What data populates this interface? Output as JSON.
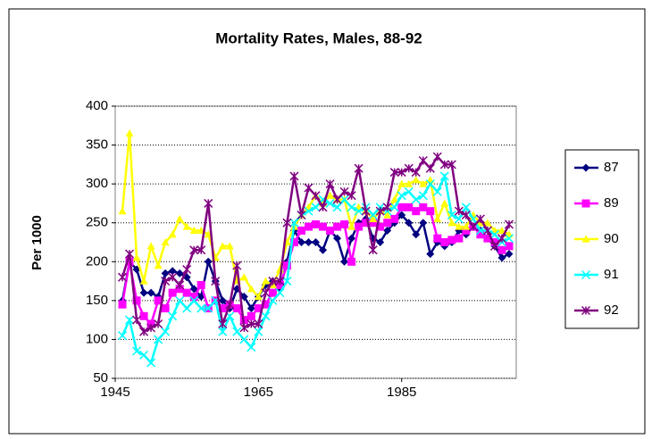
{
  "chart_data": {
    "type": "line",
    "title": "Mortality Rates, Males, 88-92",
    "y_label": "Per 1000",
    "x": [
      1946,
      1947,
      1948,
      1949,
      1950,
      1951,
      1952,
      1953,
      1954,
      1955,
      1956,
      1957,
      1958,
      1959,
      1960,
      1961,
      1962,
      1963,
      1964,
      1965,
      1966,
      1967,
      1968,
      1969,
      1970,
      1971,
      1972,
      1973,
      1974,
      1975,
      1976,
      1977,
      1978,
      1979,
      1980,
      1981,
      1982,
      1983,
      1984,
      1985,
      1986,
      1987,
      1988,
      1989,
      1990,
      1991,
      1992,
      1993,
      1994,
      1995,
      1996,
      1997,
      1998,
      1999,
      2000
    ],
    "series": [
      {
        "name": "87",
        "color": "#000080",
        "marker": "diamond",
        "values": [
          150,
          200,
          190,
          160,
          160,
          155,
          185,
          188,
          185,
          180,
          165,
          155,
          200,
          175,
          150,
          140,
          165,
          155,
          140,
          155,
          170,
          175,
          165,
          200,
          240,
          225,
          225,
          225,
          215,
          240,
          230,
          200,
          230,
          250,
          255,
          230,
          225,
          240,
          250,
          260,
          250,
          235,
          250,
          210,
          225,
          220,
          225,
          240,
          235,
          245,
          240,
          230,
          220,
          205,
          210
        ]
      },
      {
        "name": "89",
        "color": "#ff00ff",
        "marker": "square",
        "values": [
          145,
          200,
          150,
          130,
          120,
          150,
          140,
          160,
          165,
          160,
          155,
          170,
          140,
          150,
          140,
          145,
          140,
          125,
          130,
          140,
          145,
          160,
          170,
          195,
          225,
          240,
          245,
          248,
          245,
          240,
          245,
          248,
          200,
          245,
          250,
          250,
          245,
          250,
          255,
          270,
          270,
          265,
          270,
          265,
          230,
          225,
          228,
          230,
          240,
          245,
          235,
          230,
          225,
          215,
          220
        ]
      },
      {
        "name": "90",
        "color": "#ffff00",
        "marker": "triangle",
        "values": [
          265,
          365,
          205,
          175,
          220,
          195,
          225,
          235,
          255,
          245,
          240,
          240,
          235,
          205,
          220,
          220,
          175,
          180,
          165,
          155,
          175,
          170,
          190,
          225,
          245,
          260,
          270,
          285,
          275,
          285,
          280,
          280,
          245,
          270,
          265,
          255,
          265,
          260,
          280,
          300,
          300,
          305,
          300,
          305,
          255,
          275,
          250,
          245,
          245,
          260,
          250,
          250,
          240,
          240,
          235
        ]
      },
      {
        "name": "91",
        "color": "#00ffff",
        "marker": "x",
        "values": [
          105,
          125,
          85,
          80,
          70,
          100,
          110,
          130,
          150,
          140,
          150,
          140,
          140,
          150,
          110,
          130,
          110,
          100,
          90,
          110,
          130,
          150,
          160,
          175,
          250,
          260,
          265,
          270,
          280,
          275,
          270,
          280,
          270,
          265,
          270,
          260,
          270,
          265,
          270,
          285,
          290,
          280,
          285,
          300,
          290,
          310,
          260,
          255,
          270,
          255,
          240,
          240,
          235,
          225,
          230
        ]
      },
      {
        "name": "92",
        "color": "#800080",
        "marker": "star",
        "values": [
          180,
          210,
          125,
          110,
          115,
          120,
          175,
          180,
          170,
          190,
          215,
          215,
          275,
          175,
          120,
          145,
          195,
          115,
          120,
          120,
          160,
          175,
          175,
          250,
          310,
          260,
          295,
          285,
          270,
          300,
          280,
          290,
          285,
          320,
          265,
          215,
          265,
          270,
          315,
          315,
          320,
          315,
          330,
          320,
          335,
          325,
          325,
          265,
          260,
          245,
          255,
          240,
          220,
          230,
          248
        ]
      }
    ],
    "xlim": [
      1945,
      2001
    ],
    "xticks": [
      1945,
      1965,
      1985
    ],
    "ylim": [
      50,
      400
    ],
    "yticks": [
      50,
      100,
      150,
      200,
      250,
      300,
      350,
      400
    ],
    "grid": true,
    "legend": "right"
  }
}
